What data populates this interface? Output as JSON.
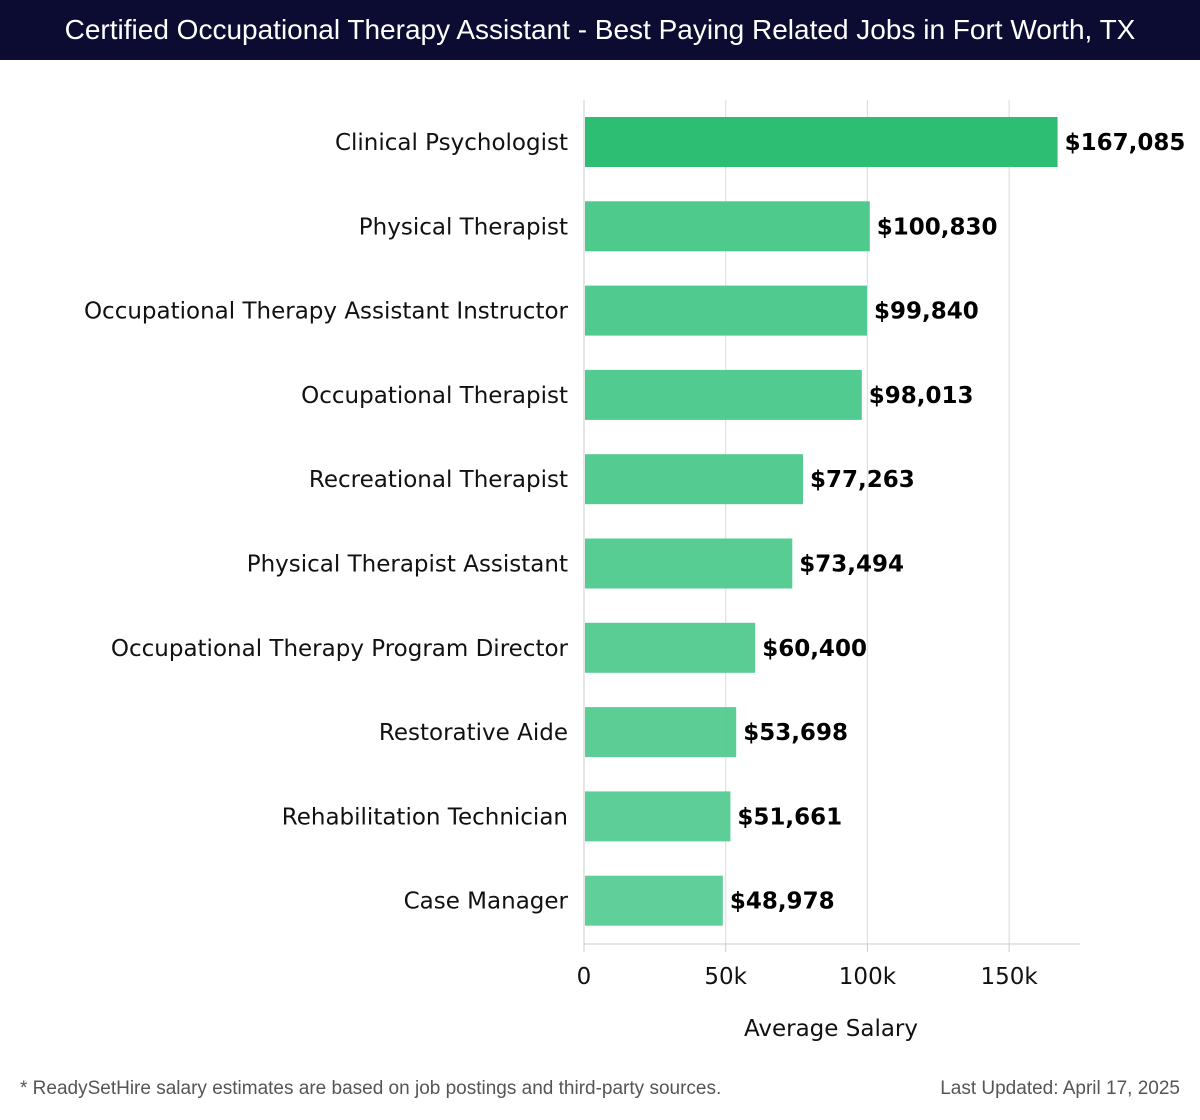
{
  "header": {
    "title": "Certified Occupational Therapy Assistant - Best Paying Related Jobs in Fort Worth, TX"
  },
  "chart_data": {
    "type": "bar",
    "orientation": "horizontal",
    "title": "Certified Occupational Therapy Assistant - Best Paying Related Jobs in Fort Worth, TX",
    "xlabel": "Average Salary",
    "ylabel": "",
    "xlim": [
      0,
      175000
    ],
    "xticks": [
      0,
      50000,
      100000,
      150000
    ],
    "xtick_labels": [
      "0",
      "50k",
      "100k",
      "150k"
    ],
    "grid": true,
    "categories": [
      "Clinical Psychologist",
      "Physical Therapist",
      "Occupational Therapy Assistant Instructor",
      "Occupational Therapist",
      "Recreational Therapist",
      "Physical Therapist Assistant",
      "Occupational Therapy Program Director",
      "Restorative Aide",
      "Rehabilitation Technician",
      "Case Manager"
    ],
    "values": [
      167085,
      100830,
      99840,
      98013,
      77263,
      73494,
      60400,
      53698,
      51661,
      48978
    ],
    "value_labels": [
      "$167,085",
      "$100,830",
      "$99,840",
      "$98,013",
      "$77,263",
      "$73,494",
      "$60,400",
      "$53,698",
      "$51,661",
      "$48,978"
    ],
    "colors": {
      "top_bar": "#2dbe74",
      "bars": "#4cc98c",
      "grid": "#e0e0e0",
      "axis": "#cccccc"
    }
  },
  "footer": {
    "note": "* ReadySetHire salary estimates are based on job postings and third-party sources.",
    "updated": "Last Updated: April 17, 2025"
  }
}
